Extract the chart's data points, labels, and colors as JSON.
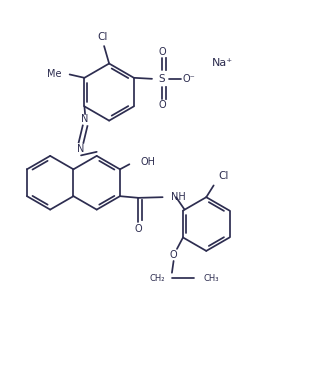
{
  "bg": "#ffffff",
  "lc": "#2d2d50",
  "lw": 1.25,
  "fs": 7.0,
  "figsize": [
    3.19,
    3.91
  ],
  "dpi": 100,
  "xlim": [
    0,
    9.5
  ],
  "ylim": [
    0,
    11.6
  ]
}
